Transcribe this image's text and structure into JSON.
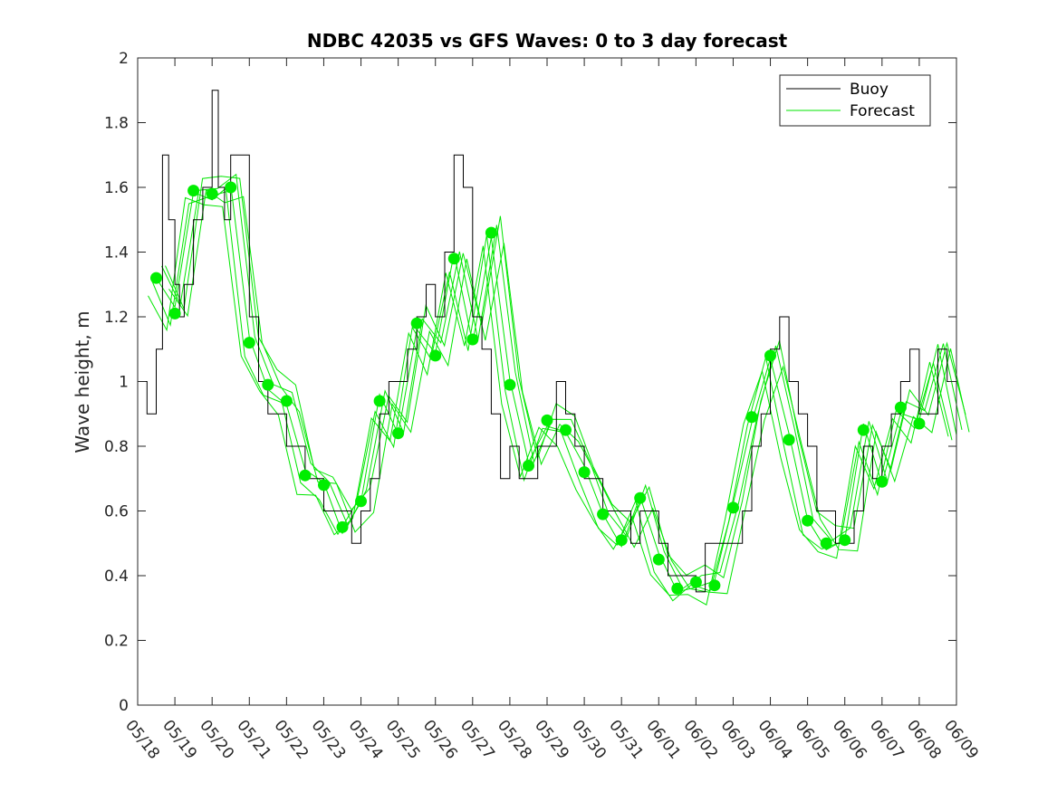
{
  "chart_data": {
    "type": "line",
    "title": "NDBC 42035 vs GFS Waves: 0 to 3 day forecast",
    "xlabel": "",
    "ylabel": "Wave height, m",
    "ylim": [
      0,
      2
    ],
    "yticks": [
      "0",
      "0.2",
      "0.4",
      "0.6",
      "0.8",
      "1",
      "1.2",
      "1.4",
      "1.6",
      "1.8",
      "2"
    ],
    "xlim": [
      "2019-05-18",
      "2019-06-09"
    ],
    "xtick_labels": [
      "05/18",
      "05/19",
      "05/20",
      "05/21",
      "05/22",
      "05/23",
      "05/24",
      "05/25",
      "05/26",
      "05/27",
      "05/28",
      "05/29",
      "05/30",
      "05/31",
      "06/01",
      "06/02",
      "06/03",
      "06/04",
      "06/05",
      "06/06",
      "06/07",
      "06/08",
      "06/09"
    ],
    "grid": false,
    "legend_position": "top-right",
    "legend": [
      "Buoy",
      "Forecast"
    ],
    "colors": {
      "buoy": "#000000",
      "forecast": "#00e600",
      "forecast_marker": "#00ee00"
    },
    "series": [
      {
        "name": "Buoy",
        "x": [
          "2019-05-18 00:00",
          "2019-05-18 06:00",
          "2019-05-18 12:00",
          "2019-05-18 16:00",
          "2019-05-18 20:00",
          "2019-05-19 00:00",
          "2019-05-19 03:00",
          "2019-05-19 06:00",
          "2019-05-19 12:00",
          "2019-05-19 18:00",
          "2019-05-20 00:00",
          "2019-05-20 04:00",
          "2019-05-20 08:00",
          "2019-05-20 12:00",
          "2019-05-20 18:00",
          "2019-05-21 00:00",
          "2019-05-21 06:00",
          "2019-05-21 12:00",
          "2019-05-21 18:00",
          "2019-05-22 00:00",
          "2019-05-22 06:00",
          "2019-05-22 12:00",
          "2019-05-22 18:00",
          "2019-05-23 00:00",
          "2019-05-23 06:00",
          "2019-05-23 12:00",
          "2019-05-23 18:00",
          "2019-05-24 00:00",
          "2019-05-24 06:00",
          "2019-05-24 12:00",
          "2019-05-24 18:00",
          "2019-05-25 00:00",
          "2019-05-25 06:00",
          "2019-05-25 12:00",
          "2019-05-25 18:00",
          "2019-05-26 00:00",
          "2019-05-26 06:00",
          "2019-05-26 12:00",
          "2019-05-26 18:00",
          "2019-05-27 00:00",
          "2019-05-27 06:00",
          "2019-05-27 12:00",
          "2019-05-27 18:00",
          "2019-05-28 00:00",
          "2019-05-28 06:00",
          "2019-05-28 12:00",
          "2019-05-28 18:00",
          "2019-05-29 00:00",
          "2019-05-29 06:00",
          "2019-05-29 12:00",
          "2019-05-29 18:00",
          "2019-05-30 00:00",
          "2019-05-30 06:00",
          "2019-05-30 12:00",
          "2019-05-30 18:00",
          "2019-05-31 00:00",
          "2019-05-31 06:00",
          "2019-05-31 12:00",
          "2019-05-31 18:00",
          "2019-06-01 00:00",
          "2019-06-01 06:00",
          "2019-06-01 12:00",
          "2019-06-01 18:00",
          "2019-06-02 00:00",
          "2019-06-02 06:00",
          "2019-06-02 12:00",
          "2019-06-02 18:00",
          "2019-06-03 00:00",
          "2019-06-03 06:00",
          "2019-06-03 12:00",
          "2019-06-03 18:00",
          "2019-06-04 00:00",
          "2019-06-04 06:00",
          "2019-06-04 12:00",
          "2019-06-04 18:00",
          "2019-06-05 00:00",
          "2019-06-05 06:00",
          "2019-06-05 12:00",
          "2019-06-05 18:00",
          "2019-06-06 00:00",
          "2019-06-06 06:00",
          "2019-06-06 12:00",
          "2019-06-06 18:00",
          "2019-06-07 00:00",
          "2019-06-07 06:00",
          "2019-06-07 12:00",
          "2019-06-07 18:00",
          "2019-06-08 00:00",
          "2019-06-08 06:00",
          "2019-06-08 12:00",
          "2019-06-08 18:00",
          "2019-06-09 00:00"
        ],
        "values": [
          1.0,
          0.9,
          1.1,
          1.7,
          1.5,
          1.3,
          1.2,
          1.3,
          1.5,
          1.6,
          1.9,
          1.6,
          1.5,
          1.7,
          1.7,
          1.2,
          1.0,
          0.9,
          0.9,
          0.8,
          0.8,
          0.7,
          0.7,
          0.6,
          0.6,
          0.6,
          0.5,
          0.6,
          0.7,
          0.9,
          1.0,
          1.0,
          1.1,
          1.2,
          1.3,
          1.2,
          1.4,
          1.7,
          1.6,
          1.2,
          1.1,
          0.9,
          0.7,
          0.8,
          0.7,
          0.7,
          0.8,
          0.8,
          1.0,
          0.9,
          0.8,
          0.7,
          0.7,
          0.6,
          0.6,
          0.6,
          0.5,
          0.6,
          0.6,
          0.5,
          0.4,
          0.4,
          0.4,
          0.35,
          0.5,
          0.5,
          0.5,
          0.5,
          0.6,
          0.8,
          0.9,
          1.1,
          1.2,
          1.0,
          0.9,
          0.8,
          0.6,
          0.6,
          0.5,
          0.5,
          0.6,
          0.8,
          0.7,
          0.8,
          0.9,
          1.0,
          1.1,
          0.9,
          0.9,
          1.1,
          1.0,
          1.0
        ]
      },
      {
        "name": "Forecast",
        "x": [
          "2019-05-18 12:00",
          "2019-05-19 00:00",
          "2019-05-19 12:00",
          "2019-05-20 00:00",
          "2019-05-20 12:00",
          "2019-05-21 00:00",
          "2019-05-21 12:00",
          "2019-05-22 00:00",
          "2019-05-22 12:00",
          "2019-05-23 00:00",
          "2019-05-23 12:00",
          "2019-05-24 00:00",
          "2019-05-24 12:00",
          "2019-05-25 00:00",
          "2019-05-25 12:00",
          "2019-05-26 00:00",
          "2019-05-26 12:00",
          "2019-05-27 00:00",
          "2019-05-27 12:00",
          "2019-05-28 00:00",
          "2019-05-28 12:00",
          "2019-05-29 00:00",
          "2019-05-29 12:00",
          "2019-05-30 00:00",
          "2019-05-30 12:00",
          "2019-05-31 00:00",
          "2019-05-31 12:00",
          "2019-06-01 00:00",
          "2019-06-01 12:00",
          "2019-06-02 00:00",
          "2019-06-02 12:00",
          "2019-06-03 00:00",
          "2019-06-03 12:00",
          "2019-06-04 00:00",
          "2019-06-04 12:00",
          "2019-06-05 00:00",
          "2019-06-05 12:00",
          "2019-06-06 00:00",
          "2019-06-06 12:00",
          "2019-06-07 00:00",
          "2019-06-07 12:00",
          "2019-06-08 00:00",
          "2019-06-08 12:00",
          "2019-06-09 00:00"
        ],
        "values": [
          1.32,
          1.21,
          1.59,
          1.58,
          1.6,
          1.12,
          0.99,
          0.94,
          0.71,
          0.68,
          0.55,
          0.63,
          0.94,
          0.84,
          1.18,
          1.08,
          1.38,
          1.13,
          1.46,
          0.99,
          0.74,
          0.88,
          0.85,
          0.72,
          0.59,
          0.51,
          0.64,
          0.45,
          0.36,
          0.38,
          0.37,
          0.61,
          0.89,
          1.08,
          0.82,
          0.57,
          0.5,
          0.51,
          0.85,
          0.69,
          0.92,
          0.87,
          1.1,
          0.85
        ]
      }
    ],
    "forecast_markers": {
      "x": [
        "2019-05-18 12:00",
        "2019-05-19 00:00",
        "2019-05-19 12:00",
        "2019-05-20 00:00",
        "2019-05-20 12:00",
        "2019-05-21 00:00",
        "2019-05-21 12:00",
        "2019-05-22 00:00",
        "2019-05-22 12:00",
        "2019-05-23 00:00",
        "2019-05-23 12:00",
        "2019-05-24 00:00",
        "2019-05-24 12:00",
        "2019-05-25 00:00",
        "2019-05-25 12:00",
        "2019-05-26 00:00",
        "2019-05-26 12:00",
        "2019-05-27 00:00",
        "2019-05-27 12:00",
        "2019-05-28 00:00",
        "2019-05-28 12:00",
        "2019-05-29 00:00",
        "2019-05-29 12:00",
        "2019-05-30 00:00",
        "2019-05-30 12:00",
        "2019-05-31 00:00",
        "2019-05-31 12:00",
        "2019-06-01 00:00",
        "2019-06-01 12:00",
        "2019-06-02 00:00",
        "2019-06-02 12:00",
        "2019-06-03 00:00",
        "2019-06-03 12:00",
        "2019-06-04 00:00",
        "2019-06-04 12:00",
        "2019-06-05 00:00",
        "2019-06-05 12:00",
        "2019-06-06 00:00",
        "2019-06-06 12:00",
        "2019-06-07 00:00",
        "2019-06-07 12:00",
        "2019-06-08 00:00"
      ],
      "values": [
        1.32,
        1.21,
        1.59,
        1.58,
        1.6,
        1.12,
        0.99,
        0.94,
        0.71,
        0.68,
        0.55,
        0.63,
        0.94,
        0.84,
        1.18,
        1.08,
        1.38,
        1.13,
        1.46,
        0.99,
        0.74,
        0.88,
        0.85,
        0.72,
        0.59,
        0.51,
        0.64,
        0.45,
        0.36,
        0.38,
        0.37,
        0.61,
        0.89,
        1.08,
        0.82,
        0.57,
        0.5,
        0.51,
        0.85,
        0.69,
        0.92,
        0.87
      ]
    }
  }
}
